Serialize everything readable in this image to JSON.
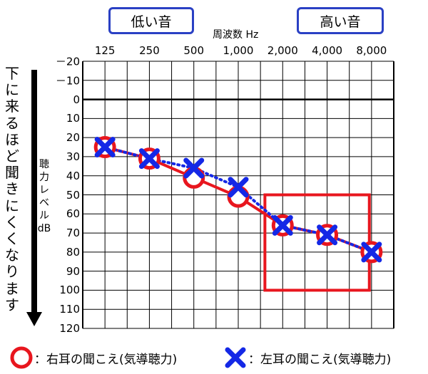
{
  "chart_data": {
    "type": "line",
    "title": "周波数 Hz",
    "xlabel": "周波数 Hz",
    "ylabel": "聴力レベル dB",
    "categories": [
      "125",
      "250",
      "500",
      "1,000",
      "2,000",
      "4,000",
      "8,000"
    ],
    "yticks": [
      "－20",
      "－10",
      "0",
      "10",
      "20",
      "30",
      "40",
      "50",
      "60",
      "70",
      "80",
      "90",
      "100",
      "110",
      "120"
    ],
    "ylim": [
      -20,
      120
    ],
    "y_inverted": true,
    "grid": true,
    "series": [
      {
        "name": "右耳の聞こえ(気導聴力)",
        "marker": "circle",
        "line": "solid",
        "color": "#e8161e",
        "values": [
          25,
          31,
          41,
          51,
          66,
          71,
          80
        ]
      },
      {
        "name": "左耳の聞こえ(気導聴力)",
        "marker": "x",
        "line": "dotted",
        "color": "#1428e6",
        "values": [
          25,
          31,
          36,
          46,
          66,
          71,
          80
        ]
      }
    ],
    "highlight_box": {
      "x_from": "2,000",
      "x_to": "8,000",
      "y_from": 50,
      "y_to": 100,
      "color": "#e8161e"
    }
  },
  "labels": {
    "low_tone": "低い音",
    "high_tone": "高い音",
    "frequency_title": "周波数 Hz",
    "ylabel": "聴力レベル dB",
    "vertical_note": "下に来るほど聞きにくくなります"
  },
  "legend": {
    "right_ear_colon": "：",
    "right_ear": "右耳の聞こえ(気導聴力)",
    "left_ear_colon": "：",
    "left_ear": "左耳の聞こえ(気導聴力)"
  },
  "colors": {
    "red": "#e8161e",
    "blue": "#1428e6",
    "pill_border": "#2a40c4"
  }
}
